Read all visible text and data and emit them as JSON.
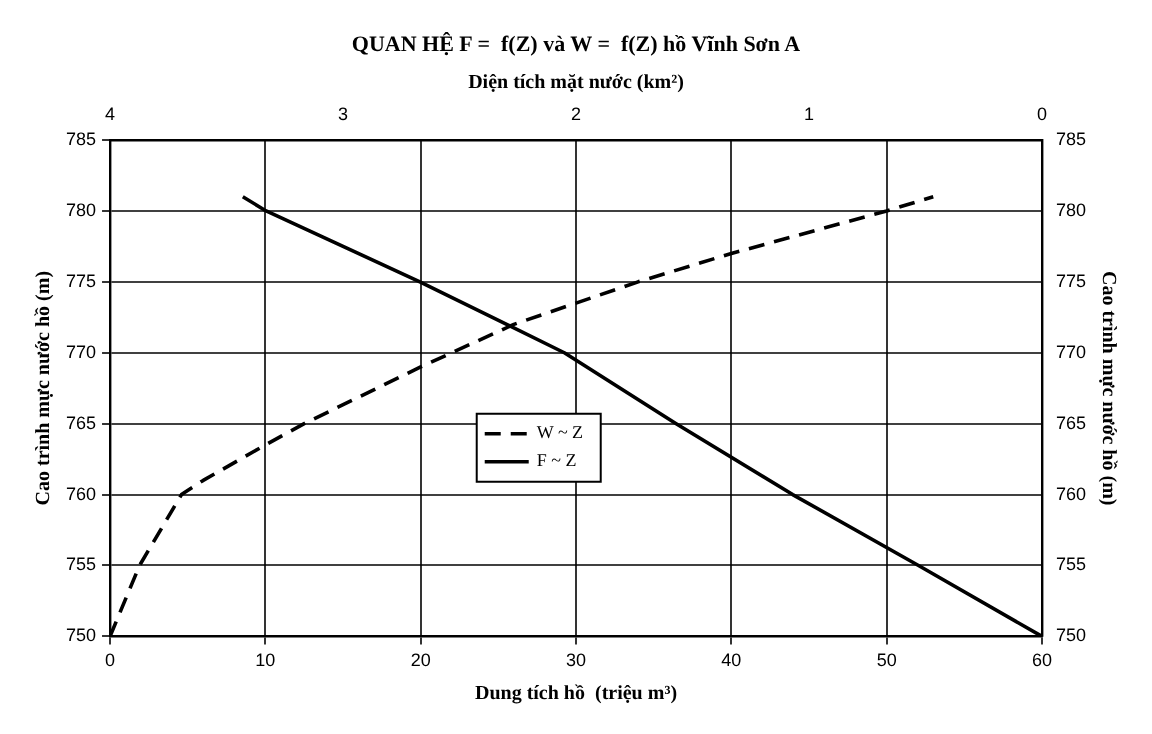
{
  "chart_data": {
    "type": "line",
    "title": "QUAN HỆ F =  f(Z) và W =  f(Z) hồ Vĩnh Sơn A",
    "xlabel": "Dung tích hồ  (triệu m³)",
    "x2label": "Diện tích mặt nước (km²)",
    "ylabel": "Cao trình mực nước hồ (m)",
    "y2label": "Cao trình mực nước hồ (m)",
    "xlim": [
      0,
      60
    ],
    "xticks": [
      0,
      10,
      20,
      30,
      40,
      50,
      60
    ],
    "x2lim": [
      4,
      0
    ],
    "x2ticks": [
      4,
      3,
      2,
      1,
      0
    ],
    "ylim": [
      750,
      785
    ],
    "yticks": [
      750,
      755,
      760,
      765,
      770,
      775,
      780,
      785
    ],
    "y2lim": [
      750,
      785
    ],
    "y2ticks": [
      750,
      755,
      760,
      765,
      770,
      775,
      780,
      785
    ],
    "grid": true,
    "legend": "center",
    "marker": "none",
    "series": [
      {
        "name": "W ~ Z",
        "color": "#000000",
        "line_style": "dashed",
        "x": [
          0,
          1.9,
          4.6,
          6,
          10,
          12.5,
          20,
          22,
          26,
          30,
          34,
          40,
          50,
          53
        ],
        "values": [
          750,
          755,
          760,
          761,
          763.5,
          765,
          769,
          770,
          772,
          773.5,
          775,
          777,
          780,
          781
        ]
      },
      {
        "name": "F ~ Z",
        "color": "#000000",
        "line_style": "solid",
        "axis": "x2",
        "x": [
          3.43,
          3.33,
          2.67,
          2.05,
          1.57,
          1.07,
          0.53,
          0
        ],
        "values": [
          781,
          780,
          775,
          770,
          765,
          760,
          755,
          750
        ]
      }
    ]
  }
}
